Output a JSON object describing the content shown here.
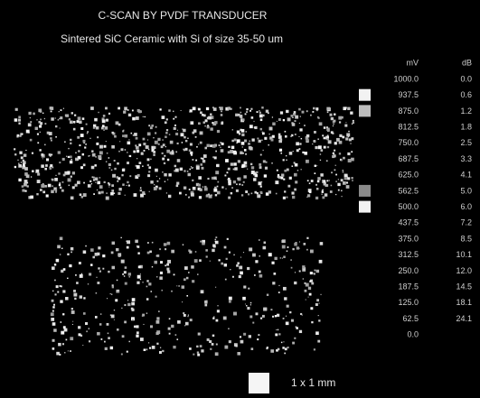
{
  "header": {
    "title": "C-SCAN BY PVDF TRANSDUCER",
    "subtitle": "Sintered SiC Ceramic with Si of size 35-50 um"
  },
  "scale_table": {
    "columns": [
      "mV",
      "dB"
    ],
    "rows": [
      [
        "1000.0",
        "0.0"
      ],
      [
        "937.5",
        "0.6"
      ],
      [
        "875.0",
        "1.2"
      ],
      [
        "812.5",
        "1.8"
      ],
      [
        "750.0",
        "2.5"
      ],
      [
        "687.5",
        "3.3"
      ],
      [
        "625.0",
        "4.1"
      ],
      [
        "562.5",
        "5.0"
      ],
      [
        "500.0",
        "6.0"
      ],
      [
        "437.5",
        "7.2"
      ],
      [
        "375.0",
        "8.5"
      ],
      [
        "312.5",
        "10.1"
      ],
      [
        "250.0",
        "12.0"
      ],
      [
        "187.5",
        "14.5"
      ],
      [
        "125.0",
        "18.1"
      ],
      [
        "62.5",
        "24.1"
      ],
      [
        "0.0"
      ]
    ]
  },
  "scale_bar": {
    "label": "1 x 1 mm"
  }
}
